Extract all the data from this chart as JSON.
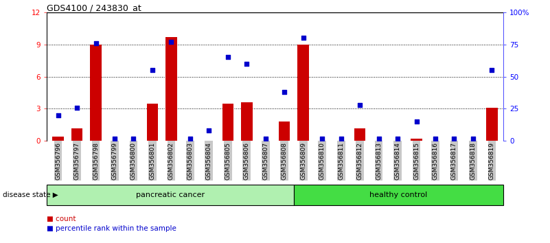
{
  "title": "GDS4100 / 243830_at",
  "samples": [
    "GSM356796",
    "GSM356797",
    "GSM356798",
    "GSM356799",
    "GSM356800",
    "GSM356801",
    "GSM356802",
    "GSM356803",
    "GSM356804",
    "GSM356805",
    "GSM356806",
    "GSM356807",
    "GSM356808",
    "GSM356809",
    "GSM356810",
    "GSM356811",
    "GSM356812",
    "GSM356813",
    "GSM356814",
    "GSM356815",
    "GSM356816",
    "GSM356817",
    "GSM356818",
    "GSM356819"
  ],
  "counts": [
    0.4,
    1.2,
    9.0,
    0.05,
    0.05,
    3.5,
    9.7,
    0.05,
    0.05,
    3.5,
    3.6,
    0.05,
    1.8,
    9.0,
    0.05,
    0.05,
    1.2,
    0.05,
    0.05,
    0.2,
    0.05,
    0.05,
    0.05,
    3.1
  ],
  "percentiles": [
    20,
    26,
    76,
    2,
    2,
    55,
    77,
    2,
    8,
    65,
    60,
    2,
    38,
    80,
    2,
    2,
    28,
    2,
    2,
    15,
    2,
    2,
    2,
    55
  ],
  "ylim_left": [
    0,
    12
  ],
  "ylim_right": [
    0,
    100
  ],
  "yticks_left": [
    0,
    3,
    6,
    9,
    12
  ],
  "ytick_labels_left": [
    "0",
    "3",
    "6",
    "9",
    "12"
  ],
  "yticks_right": [
    0,
    25,
    50,
    75,
    100
  ],
  "ytick_labels_right": [
    "0",
    "25",
    "50",
    "75",
    "100%"
  ],
  "bar_color": "#cc0000",
  "dot_color": "#0000cc",
  "bg_color": "#ffffff",
  "tick_bg_color": "#c8c8c8",
  "separator_index": 13,
  "pancreatic_label": "pancreatic cancer",
  "healthy_label": "healthy control",
  "disease_state_label": "disease state",
  "legend_count": "count",
  "legend_percentile": "percentile rank within the sample",
  "pc_color": "#b0f0b0",
  "hc_color": "#44dd44"
}
